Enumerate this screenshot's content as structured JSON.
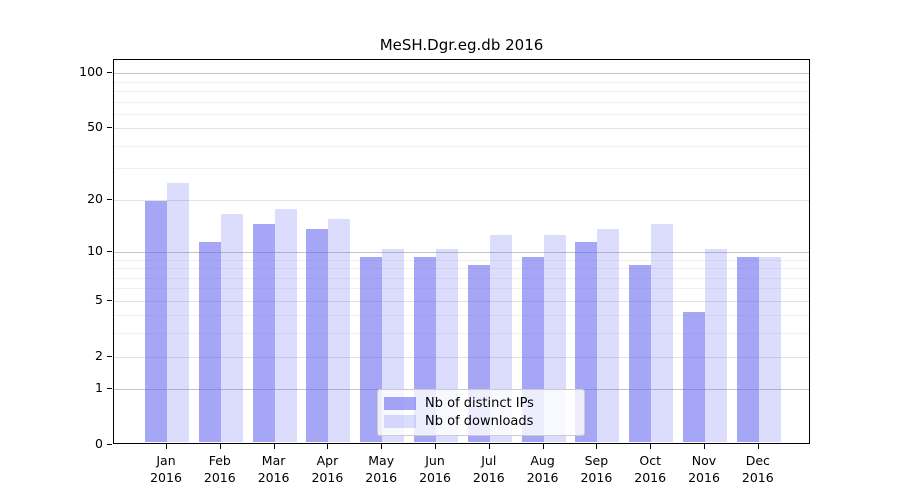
{
  "page": {
    "background": "#ffffff"
  },
  "chart_data": {
    "type": "bar",
    "title": "MeSH.Dgr.eg.db 2016",
    "categories": [
      "Jan",
      "Feb",
      "Mar",
      "Apr",
      "May",
      "Jun",
      "Jul",
      "Aug",
      "Sep",
      "Oct",
      "Nov",
      "Dec"
    ],
    "year_label": "2016",
    "series": [
      {
        "name": "Nb of distinct IPs",
        "values": [
          19,
          11,
          14,
          13,
          9,
          9,
          8,
          9,
          11,
          8,
          4,
          9
        ]
      },
      {
        "name": "Nb of downloads",
        "values": [
          24,
          16,
          17,
          15,
          10,
          10,
          12,
          12,
          13,
          14,
          10,
          9
        ]
      }
    ],
    "yticks": {
      "labels": [
        "0",
        "1",
        "2",
        "5",
        "10",
        "20",
        "50",
        "100"
      ],
      "values": [
        0,
        1,
        2,
        5,
        10,
        20,
        50,
        100
      ]
    },
    "major_gridlines": [
      1,
      10,
      100
    ],
    "mid_gridlines": [
      2,
      5,
      20,
      50
    ],
    "minor_gridlines": [
      3,
      4,
      6,
      7,
      8,
      9,
      30,
      40,
      60,
      70,
      80,
      90
    ],
    "scale": "log1p",
    "ylim": [
      0,
      118
    ],
    "grid": "on",
    "legend": {
      "position": "bottom-center",
      "entries": [
        "Nb of distinct IPs",
        "Nb of downloads"
      ]
    },
    "colors": {
      "bar_base": "#6666F0",
      "distinct_ips_alpha": 0.58,
      "downloads_alpha": 0.23,
      "major_grid": "#c4c4c4",
      "mid_grid": "#e2e2e2",
      "minor_grid": "#f1f1f1",
      "axis": "#000000",
      "text": "#000000"
    }
  }
}
